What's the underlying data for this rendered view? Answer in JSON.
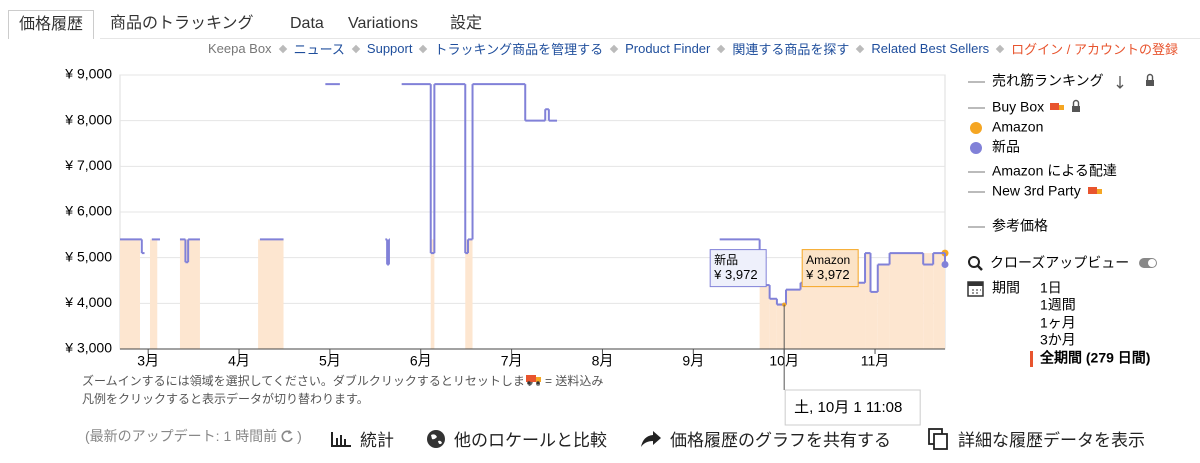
{
  "tabs": [
    "価格履歴",
    "商品のトラッキング",
    "Data",
    "Variations",
    "設定"
  ],
  "nav": [
    "Keepa Box",
    "ニュース",
    "Support",
    "トラッキング商品を管理する",
    "Product Finder",
    "関連する商品を探す",
    "Related Best Sellers",
    "ログイン / アカウントの登録"
  ],
  "chart_data": {
    "type": "line",
    "step": "post",
    "grid": true,
    "xlim": [
      2.69,
      11.77
    ],
    "xticks": [
      {
        "value": 3,
        "label": "3月"
      },
      {
        "value": 4,
        "label": "4月"
      },
      {
        "value": 5,
        "label": "5月"
      },
      {
        "value": 6,
        "label": "6月"
      },
      {
        "value": 7,
        "label": "7月"
      },
      {
        "value": 8,
        "label": "8月"
      },
      {
        "value": 9,
        "label": "9月"
      },
      {
        "value": 10,
        "label": "10月"
      },
      {
        "value": 11,
        "label": "11月"
      }
    ],
    "ylim": [
      3000,
      9000
    ],
    "yticks": [
      {
        "value": 3000,
        "label": "¥ 3,000"
      },
      {
        "value": 4000,
        "label": "¥ 4,000"
      },
      {
        "value": 5000,
        "label": "¥ 5,000"
      },
      {
        "value": 6000,
        "label": "¥ 6,000"
      },
      {
        "value": 7000,
        "label": "¥ 7,000"
      },
      {
        "value": 8000,
        "label": "¥ 8,000"
      },
      {
        "value": 9000,
        "label": "¥ 9,000"
      }
    ],
    "series": [
      {
        "name": "Amazon",
        "color": "#f5a623",
        "fill": "#fde6d0",
        "style": "area",
        "x": [
          2.69,
          2.91,
          3.02,
          3.1,
          3.35,
          3.57,
          4.21,
          4.49,
          6.11,
          6.15,
          6.49,
          6.57,
          9.73,
          9.84,
          9.92,
          10.02,
          10.18,
          10.89,
          10.95,
          11.03,
          11.16,
          11.53,
          11.64,
          11.77
        ],
        "values": [
          5400,
          null,
          5400,
          null,
          5400,
          null,
          5400,
          null,
          5400,
          null,
          5400,
          null,
          4400,
          4100,
          3972,
          4300,
          4450,
          5100,
          4250,
          4850,
          5100,
          5100,
          5100,
          5100
        ]
      },
      {
        "name": "新品",
        "color": "#8181d8",
        "style": "line",
        "x": [
          2.69,
          2.93,
          2.96,
          3.04,
          3.13,
          3.35,
          3.41,
          3.44,
          3.57,
          4.23,
          4.49,
          4.95,
          5.11,
          5.61,
          5.63,
          5.65,
          5.66,
          5.79,
          6.11,
          6.15,
          6.49,
          6.52,
          6.57,
          7.15,
          7.37,
          7.41,
          7.5,
          9.29,
          9.73,
          9.84,
          9.92,
          10.02,
          10.18,
          10.89,
          10.95,
          11.03,
          11.16,
          11.53,
          11.64,
          11.77
        ],
        "values": [
          5400,
          5100,
          null,
          5400,
          null,
          5400,
          4900,
          5400,
          null,
          5400,
          null,
          8800,
          null,
          5400,
          4850,
          5400,
          null,
          8800,
          5100,
          8800,
          5100,
          5400,
          8800,
          8000,
          8250,
          8000,
          null,
          5400,
          4400,
          4100,
          3972,
          4300,
          4450,
          5100,
          4250,
          4850,
          5100,
          4850,
          5100,
          4850
        ]
      }
    ],
    "legend_items": [
      "売れ筋ランキング",
      "Buy Box",
      "Amazon による配達",
      "New 3rd Party",
      "参考価格"
    ],
    "tooltips": [
      {
        "name": "新品",
        "value": 3972,
        "value_label": "¥ 3,972"
      },
      {
        "name": "Amazon",
        "value": 3972,
        "value_label": "¥ 3,972"
      }
    ],
    "crosshair_x": 10,
    "crosshair_label": "土, 10月 1 11:08"
  },
  "legend_panel": {
    "closeup": "クローズアップビュー",
    "range_title": "期間",
    "ranges": [
      "1日",
      "1週間",
      "1ヶ月",
      "3か月",
      "全期間 (279 日間)"
    ]
  },
  "notes": [
    "ズームインするには領域を選択してください。ダブルクリックするとリセットします。",
    "= 送料込み",
    "凡例をクリックすると表示データが切り替わります。"
  ],
  "actions": {
    "update": [
      "(最新のアップデート: 1 時間前",
      ")"
    ],
    "buttons": [
      "統計",
      "他のロケールと比較",
      "価格履歴のグラフを共有する",
      "詳細な履歴データを表示"
    ]
  }
}
